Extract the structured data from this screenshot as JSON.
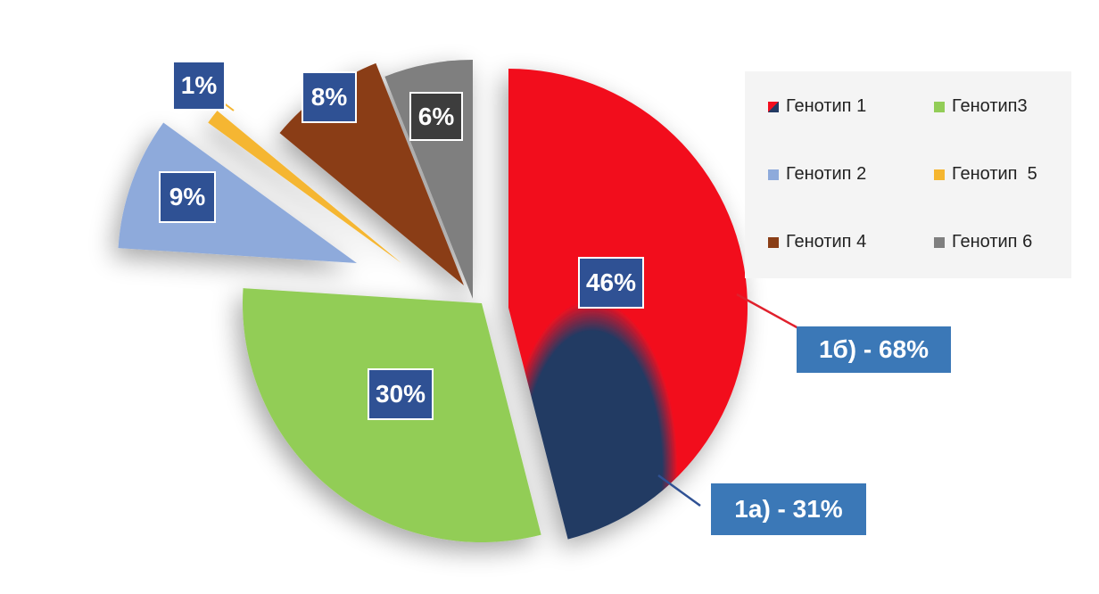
{
  "chart_data": {
    "type": "pie",
    "slices": [
      {
        "name": "Генотип 1",
        "value": 46,
        "label": "46%",
        "color": "#f20f1f"
      },
      {
        "name": "Генотип3",
        "value": 30,
        "label": "30%",
        "color": "#92cd57"
      },
      {
        "name": "Генотип 2",
        "value": 9,
        "label": "9%",
        "color": "#8eaadb"
      },
      {
        "name": "Генотип  5",
        "value": 1,
        "label": "1%",
        "color": "#f5b630"
      },
      {
        "name": "Генотип 4",
        "value": 8,
        "label": "8%",
        "color": "#8a3e16"
      },
      {
        "name": "Генотип 6",
        "value": 6,
        "label": "6%",
        "color": "#7f7f7f"
      }
    ],
    "subdivision": {
      "parent": "Генотип 1",
      "parts": [
        {
          "label": "1б) - 68%",
          "value": 68,
          "color": "#f20f1f"
        },
        {
          "label": "1а) - 31%",
          "value": 31,
          "color": "#233a63"
        }
      ]
    },
    "legend": {
      "placement": "right",
      "items": [
        {
          "label": "Генотип 1",
          "color": "#f20f1f"
        },
        {
          "label": "Генотип3",
          "color": "#92cd57"
        },
        {
          "label": "Генотип 2",
          "color": "#8eaadb"
        },
        {
          "label": "Генотип  5",
          "color": "#f5b630"
        },
        {
          "label": "Генотип 4",
          "color": "#8a3e16"
        },
        {
          "label": "Генотип 6",
          "color": "#7f7f7f"
        }
      ]
    }
  }
}
